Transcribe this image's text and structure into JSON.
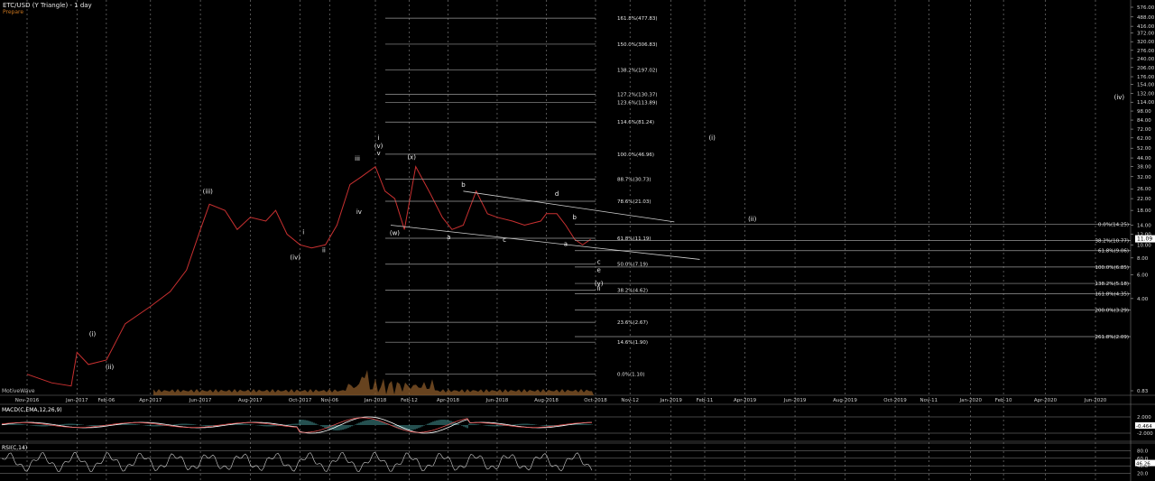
{
  "header": {
    "title": "ETC/USD (Y Triangle) - 1 day",
    "subtitle": "Prepare"
  },
  "watermark": "MotiveWave",
  "chart_data": {
    "type": "line",
    "title": "ETC/USD (Y Triangle) - 1 day",
    "price_scale": {
      "type": "log",
      "ticks": [
        "576.00",
        "488.00",
        "416.00",
        "372.00",
        "320.00",
        "276.00",
        "240.00",
        "206.00",
        "176.00",
        "154.00",
        "132.00",
        "114.00",
        "98.00",
        "84.00",
        "72.00",
        "62.00",
        "52.00",
        "44.00",
        "38.00",
        "32.00",
        "26.00",
        "22.00",
        "18.00",
        "14.00",
        "12.00",
        "10.00",
        "8.00",
        "6.00",
        "4.00",
        "0.83"
      ],
      "current_price": "11.09",
      "current_price_color": "#ffffff"
    },
    "time_axis": [
      "Nov-2016",
      "Jan-2017",
      "Feb-06",
      "Apr-2017",
      "Jun-2017",
      "Aug-2017",
      "Oct-2017",
      "Nov-06",
      "Jan-2018",
      "Feb-12",
      "Apr-2018",
      "Jun-2018",
      "Aug-2018",
      "Oct-2018",
      "Nov-12",
      "Jan-2019",
      "Feb-11",
      "Apr-2019",
      "Jun-2019",
      "Aug-2019",
      "Oct-2019",
      "Nov-11",
      "Jan-2020",
      "Feb-10",
      "Apr-2020",
      "Jun-2020"
    ],
    "price_series": {
      "name": "ETC/USD",
      "x": [
        "2016-11-01",
        "2016-12-01",
        "2016-12-25",
        "2017-01-01",
        "2017-01-15",
        "2017-02-06",
        "2017-03-01",
        "2017-04-01",
        "2017-04-25",
        "2017-05-15",
        "2017-06-01",
        "2017-06-12",
        "2017-07-01",
        "2017-07-16",
        "2017-08-01",
        "2017-08-20",
        "2017-09-01",
        "2017-09-15",
        "2017-10-01",
        "2017-10-15",
        "2017-11-01",
        "2017-11-15",
        "2017-12-01",
        "2017-12-15",
        "2018-01-01",
        "2018-01-13",
        "2018-01-25",
        "2018-02-06",
        "2018-02-20",
        "2018-03-10",
        "2018-03-25",
        "2018-04-06",
        "2018-04-20",
        "2018-05-06",
        "2018-05-20",
        "2018-06-01",
        "2018-06-20",
        "2018-07-05",
        "2018-07-25",
        "2018-08-01",
        "2018-08-14",
        "2018-08-25",
        "2018-09-05",
        "2018-09-15",
        "2018-09-25"
      ],
      "y": [
        1.1,
        0.95,
        0.9,
        1.6,
        1.3,
        1.4,
        2.6,
        3.5,
        4.5,
        6.5,
        13,
        20,
        18,
        13,
        16,
        15,
        18,
        12,
        10,
        9.5,
        10,
        14,
        28,
        32,
        38,
        25,
        22,
        13,
        38,
        24,
        16,
        13,
        14,
        25,
        17,
        16,
        15,
        14,
        15,
        17,
        17,
        14,
        11,
        10,
        11
      ]
    },
    "fib_retracement_left": [
      {
        "label": "161.8%(477.83)",
        "value": 477.83
      },
      {
        "label": "150.0%(306.83)",
        "value": 306.83
      },
      {
        "label": "138.2%(197.02)",
        "value": 197.02
      },
      {
        "label": "127.2%(130.37)",
        "value": 130.37
      },
      {
        "label": "123.6%(113.89)",
        "value": 113.89
      },
      {
        "label": "114.6%(81.24)",
        "value": 81.24
      },
      {
        "label": "100.0%(46.96)",
        "value": 46.96
      },
      {
        "label": "88.7%(30.73)",
        "value": 30.73
      },
      {
        "label": "78.6%(21.03)",
        "value": 21.03
      },
      {
        "label": "61.8%(11.19)",
        "value": 11.19
      },
      {
        "label": "50.0%(7.19)",
        "value": 7.19
      },
      {
        "label": "38.2%(4.62)",
        "value": 4.62
      },
      {
        "label": "23.6%(2.67)",
        "value": 2.67
      },
      {
        "label": "14.6%(1.90)",
        "value": 1.9
      },
      {
        "label": "0.0%(1.10)",
        "value": 1.1
      }
    ],
    "fib_extension_right": [
      {
        "label": "0.0%(14.25)",
        "value": 14.25
      },
      {
        "label": "38.2%(10.77)",
        "value": 10.77
      },
      {
        "label": "61.8%(9.06)",
        "value": 9.06
      },
      {
        "label": "100.0%(6.85)",
        "value": 6.85
      },
      {
        "label": "138.2%(5.18)",
        "value": 5.18
      },
      {
        "label": "161.8%(4.35)",
        "value": 4.35
      },
      {
        "label": "200.0%(3.29)",
        "value": 3.29
      },
      {
        "label": "261.8%(2.09)",
        "value": 2.09
      }
    ],
    "wave_labels": [
      {
        "text": "(i)",
        "date": "2017-01-20",
        "value": 2.1
      },
      {
        "text": "(ii)",
        "date": "2017-02-10",
        "value": 1.2
      },
      {
        "text": "(iii)",
        "date": "2017-06-10",
        "value": 24
      },
      {
        "text": "(iv)",
        "date": "2017-09-25",
        "value": 7.8
      },
      {
        "text": "i",
        "date": "2017-10-05",
        "value": 12
      },
      {
        "text": "ii",
        "date": "2017-10-30",
        "value": 8.8
      },
      {
        "text": "iii",
        "date": "2017-12-10",
        "value": 42
      },
      {
        "text": "iv",
        "date": "2017-12-12",
        "value": 17
      },
      {
        "text": "v",
        "date": "2018-01-05",
        "value": 46
      },
      {
        "text": "(v)",
        "date": "2018-01-05",
        "value": 52
      },
      {
        "text": "i",
        "date": "2018-01-05",
        "value": 60
      },
      {
        "text": "(x)",
        "date": "2018-02-15",
        "value": 43
      },
      {
        "text": "(w)",
        "date": "2018-01-25",
        "value": 11.8
      },
      {
        "text": "a",
        "date": "2018-04-02",
        "value": 11
      },
      {
        "text": "b",
        "date": "2018-04-20",
        "value": 27
      },
      {
        "text": "c",
        "date": "2018-06-10",
        "value": 10.5
      },
      {
        "text": "d",
        "date": "2018-08-14",
        "value": 23
      },
      {
        "text": "b",
        "date": "2018-09-05",
        "value": 15.5
      },
      {
        "text": "a",
        "date": "2018-08-25",
        "value": 9.8
      },
      {
        "text": "c",
        "date": "2018-10-05",
        "value": 7.2
      },
      {
        "text": "e",
        "date": "2018-10-05",
        "value": 6.3
      },
      {
        "text": "(y)",
        "date": "2018-10-05",
        "value": 5
      },
      {
        "text": "ii",
        "date": "2018-10-05",
        "value": 4.6
      },
      {
        "text": "(i)",
        "date": "2019-02-20",
        "value": 60
      },
      {
        "text": "(ii)",
        "date": "2019-04-10",
        "value": 15
      },
      {
        "text": "(iv)",
        "date": "2020-06-30",
        "value": 120
      }
    ],
    "trendlines": [
      {
        "from": {
          "date": "2018-04-20",
          "value": 25
        },
        "to": {
          "date": "2019-01-05",
          "value": 14.8
        }
      },
      {
        "from": {
          "date": "2018-01-20",
          "value": 14
        },
        "to": {
          "date": "2019-02-05",
          "value": 7.8
        }
      }
    ],
    "macd": {
      "label": "MACD(C,EMA,12,26,9)",
      "ticks": [
        "2.000",
        "-2.000"
      ],
      "current_value": "-0.464",
      "series": [
        {
          "name": "MACD",
          "color": "#ffffff"
        },
        {
          "name": "Signal",
          "color": "#e05050"
        }
      ],
      "histogram_color": "#4aa0a0"
    },
    "rsi": {
      "label": "RSI(C,14)",
      "ticks": [
        "80.0",
        "60.0",
        "40.0",
        "20.0"
      ],
      "current_value": "46.26"
    },
    "colors": {
      "background": "#000000",
      "grid": "#8a8a8a",
      "price": "#c83030",
      "volume": "#8a5a2a",
      "fib_line": "#9a9a9a"
    }
  }
}
